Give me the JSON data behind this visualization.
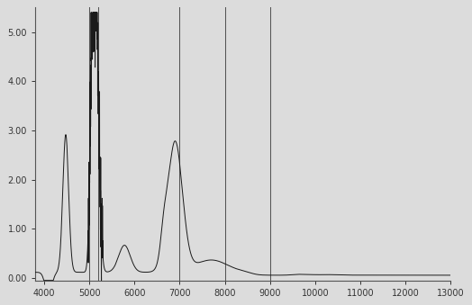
{
  "xlim_left": 13000,
  "xlim_right": 3800,
  "ylim": [
    -0.05,
    5.5
  ],
  "xticks": [
    13000,
    12000,
    11000,
    10000,
    9000,
    8000,
    7000,
    6000,
    5000,
    4000
  ],
  "yticks": [
    0.0,
    1.0,
    2.0,
    3.0,
    4.0,
    5.0
  ],
  "ytick_labels": [
    "0.00",
    "1.00",
    "2.00",
    "3.00",
    "4.00",
    "5.00"
  ],
  "vlines": [
    9000,
    8000,
    7000,
    5200,
    5000
  ],
  "background_color": "#dcdcdc",
  "line_color": "#1a1a1a",
  "vline_color": "#555555"
}
